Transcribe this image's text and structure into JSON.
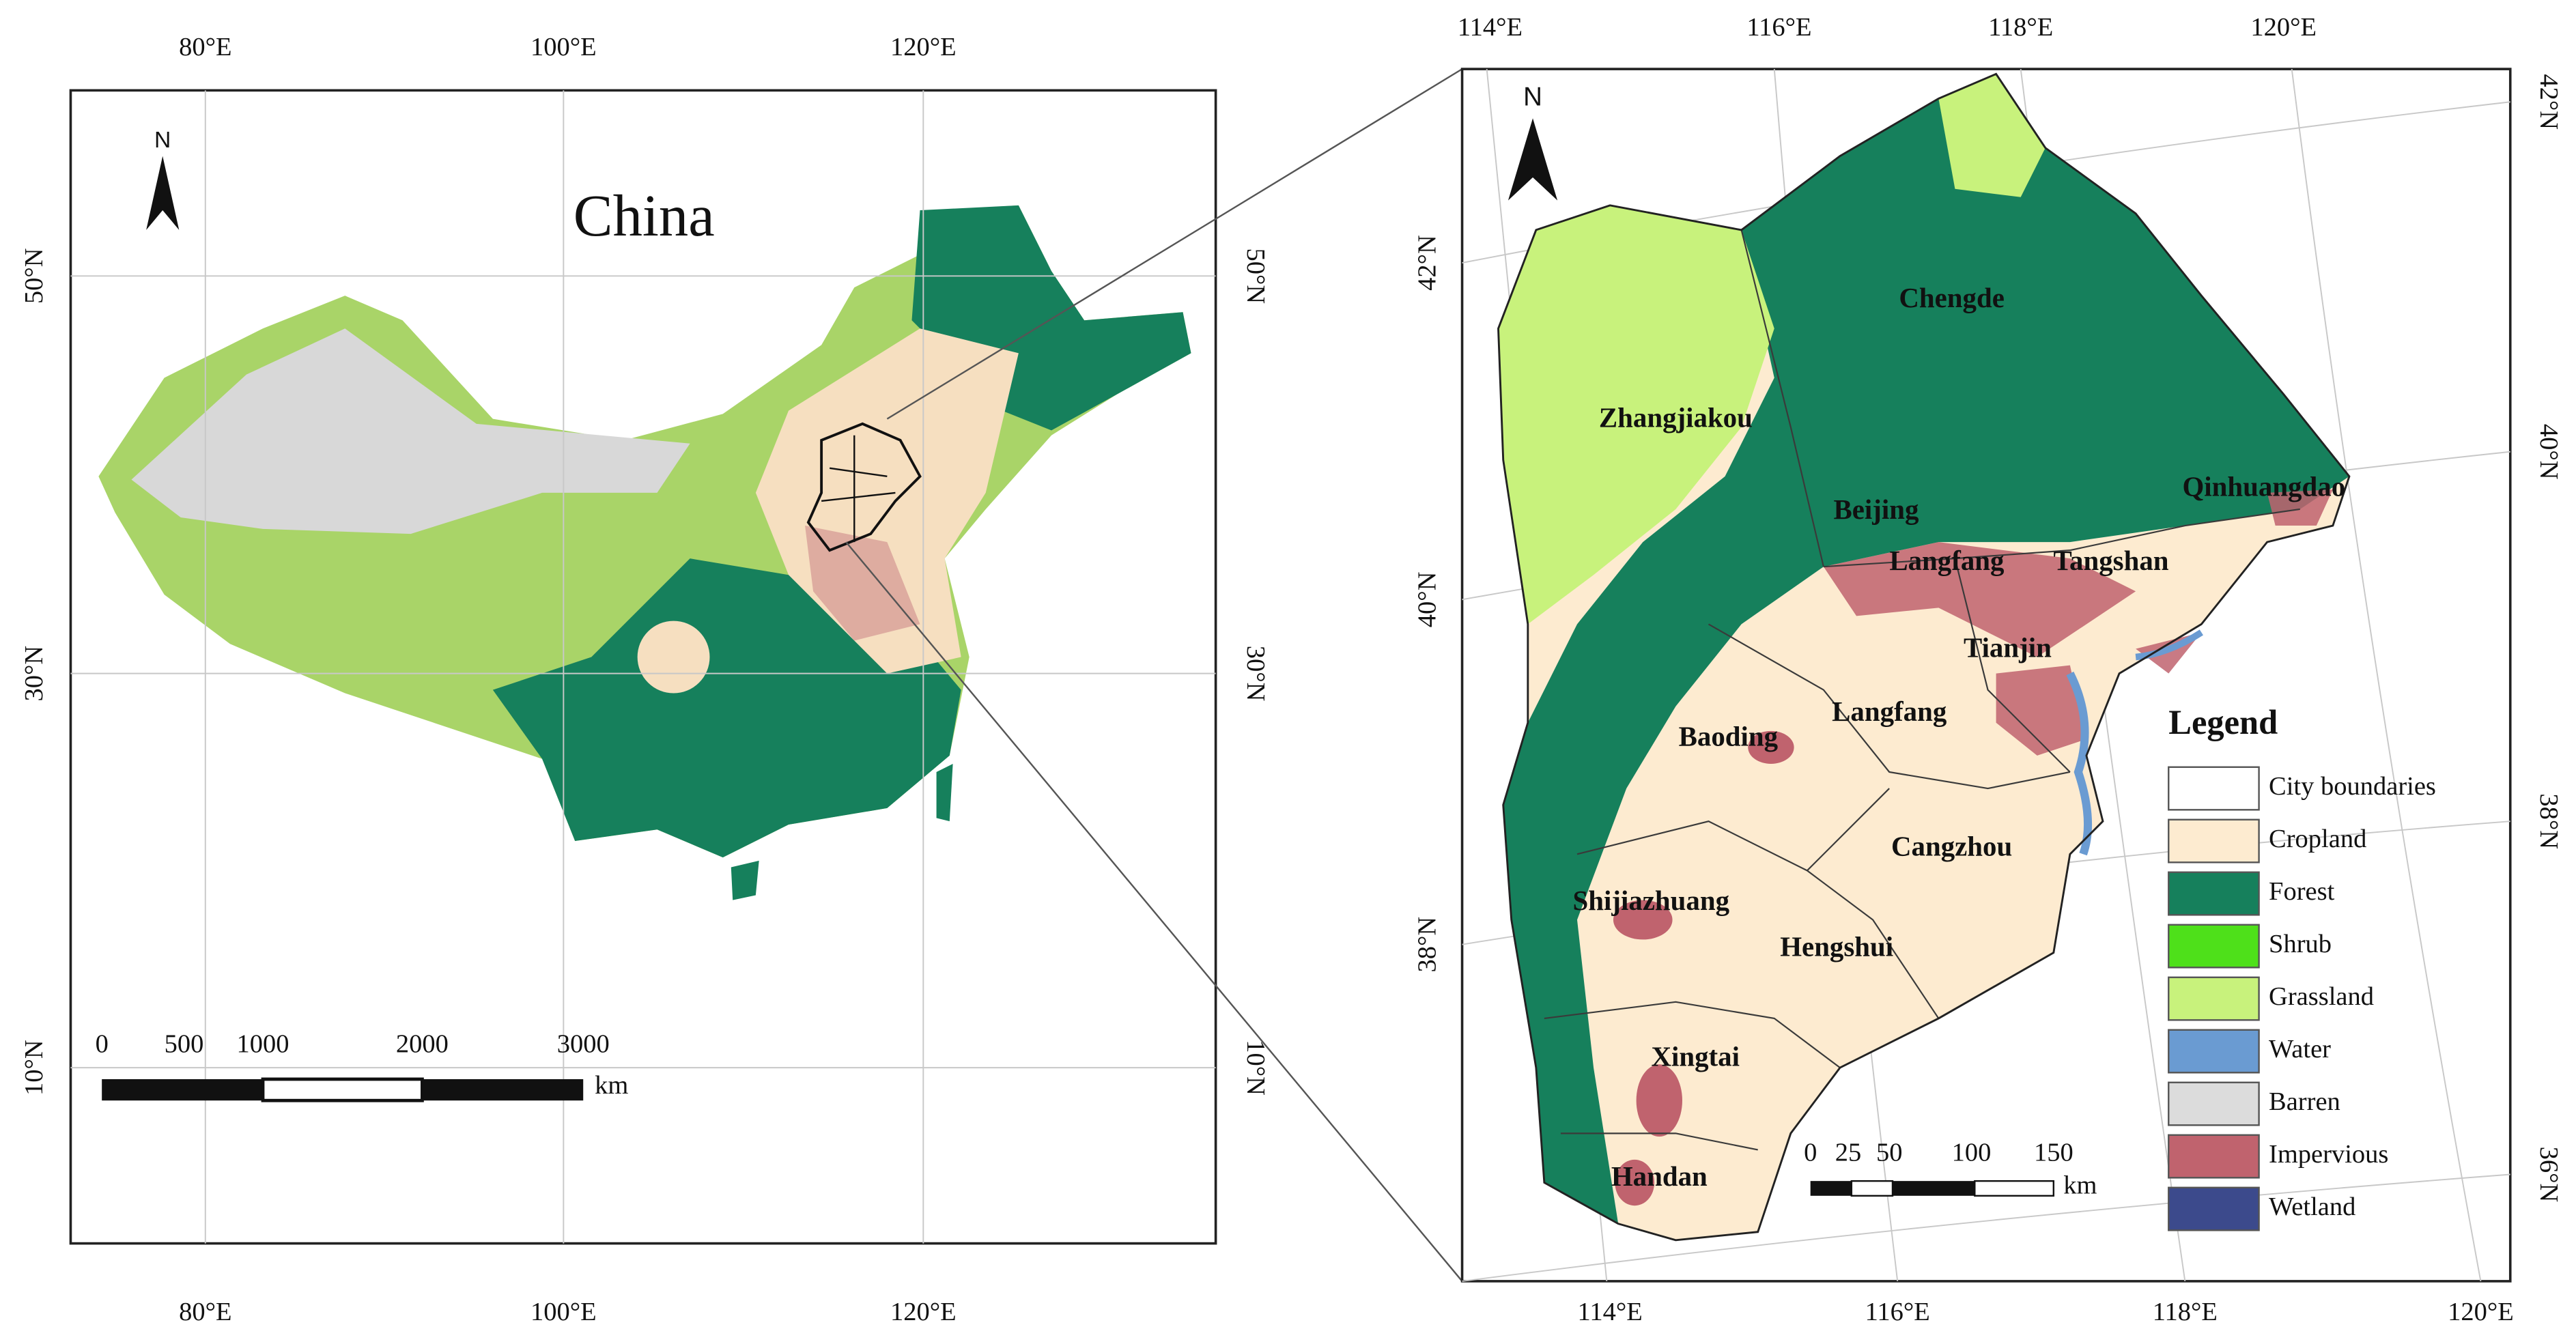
{
  "left_map": {
    "title": "China",
    "north": "N",
    "top_labels": [
      "80°E",
      "100°E",
      "120°E"
    ],
    "bottom_labels": [
      "80°E",
      "100°E",
      "120°E"
    ],
    "left_labels": [
      "50°N",
      "30°N",
      "10°N"
    ],
    "right_labels": [
      "50°N",
      "30°N",
      "10°N"
    ],
    "scale_labels": [
      "0",
      "500",
      "1000",
      "2000",
      "3000"
    ],
    "scale_unit": "km"
  },
  "right_map": {
    "north": "N",
    "top_labels": [
      "114°E",
      "116°E",
      "118°E",
      "120°E"
    ],
    "bottom_labels": [
      "114°E",
      "116°E",
      "118°E",
      "120°E"
    ],
    "left_labels": [
      "42°N",
      "40°N",
      "38°N"
    ],
    "right_labels": [
      "42°N",
      "40°N",
      "38°N",
      "36°N"
    ],
    "cities": [
      "Chengde",
      "Zhangjiakou",
      "Qinhuangdao",
      "Beijing",
      "Langfang",
      "Tangshan",
      "Tianjin",
      "Langfang",
      "Baoding",
      "Cangzhou",
      "Shijiazhuang",
      "Hengshui",
      "Xingtai",
      "Handan"
    ],
    "scale_labels": [
      "0",
      "25",
      "50",
      "100",
      "150"
    ],
    "scale_unit": "km"
  },
  "legend": {
    "title": "Legend",
    "items": [
      {
        "label": "City boundaries",
        "color": "#ffffff"
      },
      {
        "label": "Cropland",
        "color": "#fdebd0"
      },
      {
        "label": "Forest",
        "color": "#16805c"
      },
      {
        "label": "Shrub",
        "color": "#4ee01a"
      },
      {
        "label": "Grassland",
        "color": "#c8f27c"
      },
      {
        "label": "Water",
        "color": "#6a9bd2"
      },
      {
        "label": "Barren",
        "color": "#dcdcdc"
      },
      {
        "label": "Impervious",
        "color": "#c0636e"
      },
      {
        "label": "Wetland",
        "color": "#3c4a8c"
      }
    ]
  }
}
